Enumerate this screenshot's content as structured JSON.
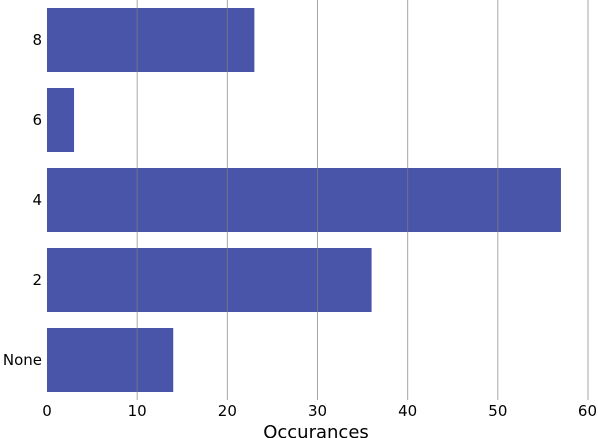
{
  "chart_data": {
    "type": "bar",
    "orientation": "horizontal",
    "categories": [
      "None",
      "2",
      "4",
      "6",
      "8"
    ],
    "values": [
      14,
      36,
      57,
      3,
      23
    ],
    "xlabel": "Occurances",
    "ylabel": "",
    "xlim": [
      0,
      60
    ],
    "xticks": [
      0,
      10,
      20,
      30,
      40,
      50,
      60
    ],
    "grid": "vertical",
    "bar_color": "#4955a8",
    "grid_color": "#808080"
  }
}
